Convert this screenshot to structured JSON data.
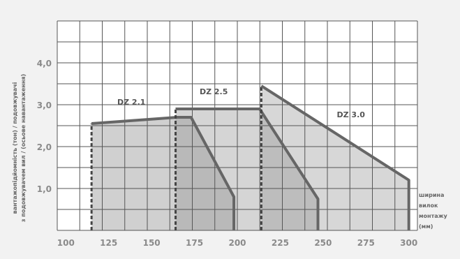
{
  "chart_data": {
    "type": "area",
    "ylabel_lines": [
      "вантажопідйомність (тон) / подовжувачі",
      "з подовжувачем вил / (осьове навантаження)"
    ],
    "xlabel_lines": [
      "ширина",
      "вилок",
      "монтажу",
      "(мм)"
    ],
    "x_ticks": [
      100,
      125,
      150,
      175,
      200,
      225,
      250,
      275,
      300
    ],
    "y_ticks": [
      1.0,
      2.0,
      3.0,
      4.0
    ],
    "x_tick_labels": [
      "100",
      "125",
      "150",
      "175",
      "200",
      "225",
      "250",
      "275",
      "300"
    ],
    "y_tick_labels": [
      "1,0",
      "2,0",
      "3,0",
      "4,0"
    ],
    "xlim": [
      95,
      305
    ],
    "ylim": [
      0,
      5
    ],
    "grid": true,
    "series": [
      {
        "name": "DZ 2.1",
        "start_x": 115,
        "points": [
          [
            115,
            2.55
          ],
          [
            165,
            2.7
          ],
          [
            173,
            2.7
          ],
          [
            198,
            0.8
          ],
          [
            198,
            0
          ]
        ]
      },
      {
        "name": "DZ 2.5",
        "start_x": 164,
        "points": [
          [
            164,
            2.9
          ],
          [
            205,
            2.9
          ],
          [
            213,
            2.9
          ],
          [
            247,
            0.75
          ],
          [
            247,
            0
          ]
        ]
      },
      {
        "name": "DZ 3.0",
        "start_x": 214,
        "points": [
          [
            214,
            3.45
          ],
          [
            300,
            1.2
          ],
          [
            300,
            0
          ]
        ]
      }
    ]
  }
}
